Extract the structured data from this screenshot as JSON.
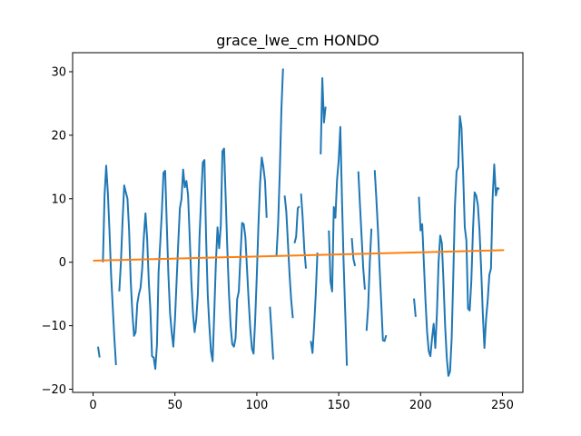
{
  "chart_data": {
    "type": "line",
    "title": "grace_lwe_cm HONDO",
    "xlabel": "",
    "ylabel": "",
    "xlim": [
      -12.5,
      262.5
    ],
    "ylim": [
      -20.5,
      33
    ],
    "xticks": [
      0,
      50,
      100,
      150,
      200,
      250
    ],
    "yticks": [
      -20,
      -10,
      0,
      10,
      20,
      30
    ],
    "xtick_labels": [
      "0",
      "50",
      "100",
      "150",
      "200",
      "250"
    ],
    "ytick_labels": [
      "−20",
      "−10",
      "0",
      "10",
      "20",
      "30"
    ],
    "grid": false,
    "legend": "none",
    "colors": {
      "series": "#1f77b4",
      "trend": "#ff7f0e",
      "frame": "#000000"
    },
    "series": [
      {
        "segments": [
          [
            [
              3,
              -13.3
            ],
            [
              4,
              -15.0
            ]
          ],
          [
            [
              6,
              0.0
            ],
            [
              7,
              10.5
            ],
            [
              8,
              15.2
            ],
            [
              9,
              11.0
            ],
            [
              10,
              5.0
            ],
            [
              11,
              -2.0
            ],
            [
              12,
              -7.0
            ],
            [
              13,
              -12.0
            ],
            [
              14,
              -16.2
            ]
          ],
          [
            [
              16,
              -4.6
            ],
            [
              17,
              0.0
            ],
            [
              18,
              6.5
            ],
            [
              19,
              12.1
            ],
            [
              20,
              11.0
            ],
            [
              21,
              10.0
            ],
            [
              22,
              5.0
            ],
            [
              23,
              -3.0
            ],
            [
              24,
              -8.0
            ],
            [
              25,
              -11.6
            ],
            [
              26,
              -11.0
            ],
            [
              27,
              -6.5
            ],
            [
              28,
              -5.0
            ],
            [
              29,
              -4.0
            ],
            [
              30,
              -1.0
            ],
            [
              31,
              4.0
            ],
            [
              32,
              7.7
            ],
            [
              33,
              3.8
            ],
            [
              34,
              -3.0
            ],
            [
              35,
              -7.5
            ],
            [
              36,
              -14.8
            ],
            [
              37,
              -15.0
            ],
            [
              38,
              -16.8
            ],
            [
              39,
              -13.0
            ],
            [
              40,
              -1.5
            ],
            [
              41,
              3.0
            ],
            [
              42,
              8.0
            ],
            [
              43,
              14.1
            ],
            [
              44,
              14.4
            ],
            [
              45,
              6.0
            ],
            [
              46,
              -2.0
            ],
            [
              47,
              -8.0
            ],
            [
              48,
              -11.0
            ],
            [
              49,
              -13.3
            ],
            [
              50,
              -9.0
            ],
            [
              51,
              -3.0
            ],
            [
              52,
              3.0
            ],
            [
              53,
              8.5
            ],
            [
              54,
              10.0
            ],
            [
              55,
              14.6
            ],
            [
              56,
              11.8
            ],
            [
              57,
              12.8
            ],
            [
              58,
              10.5
            ],
            [
              59,
              4.0
            ],
            [
              60,
              -3.0
            ],
            [
              61,
              -8.0
            ],
            [
              62,
              -11.0
            ],
            [
              63,
              -9.0
            ],
            [
              64,
              -5.0
            ],
            [
              65,
              4.0
            ],
            [
              66,
              10.0
            ],
            [
              67,
              15.7
            ],
            [
              68,
              16.1
            ],
            [
              69,
              4.0
            ],
            [
              70,
              -5.0
            ],
            [
              71,
              -10.0
            ],
            [
              72,
              -14.0
            ],
            [
              73,
              -15.6
            ],
            [
              74,
              -8.0
            ],
            [
              75,
              0.0
            ],
            [
              76,
              5.5
            ],
            [
              77,
              2.2
            ],
            [
              78,
              5.8
            ],
            [
              79,
              17.5
            ],
            [
              80,
              17.9
            ],
            [
              81,
              10.0
            ],
            [
              82,
              2.0
            ],
            [
              83,
              -5.0
            ],
            [
              84,
              -10.0
            ],
            [
              85,
              -12.9
            ],
            [
              86,
              -13.3
            ],
            [
              87,
              -12.0
            ],
            [
              88,
              -5.8
            ],
            [
              89,
              -4.6
            ],
            [
              90,
              1.0
            ],
            [
              91,
              6.2
            ],
            [
              92,
              6.0
            ],
            [
              93,
              4.0
            ],
            [
              94,
              -1.0
            ],
            [
              95,
              -6.0
            ],
            [
              96,
              -10.4
            ],
            [
              97,
              -13.6
            ],
            [
              98,
              -14.4
            ],
            [
              99,
              -9.0
            ],
            [
              100,
              -2.0
            ],
            [
              101,
              6.0
            ],
            [
              102,
              12.5
            ],
            [
              103,
              16.5
            ],
            [
              104,
              15.0
            ],
            [
              105,
              12.8
            ],
            [
              106,
              7.0
            ]
          ],
          [
            [
              108,
              -7.0
            ],
            [
              109,
              -11.0
            ],
            [
              110,
              -15.3
            ]
          ],
          [
            [
              112,
              1.0
            ],
            [
              113,
              6.0
            ],
            [
              114,
              14.0
            ],
            [
              115,
              24.0
            ],
            [
              116,
              30.5
            ]
          ],
          [
            [
              117,
              10.5
            ],
            [
              118,
              8.0
            ],
            [
              119,
              3.0
            ],
            [
              120,
              -2.0
            ],
            [
              121,
              -6.0
            ],
            [
              122,
              -8.8
            ]
          ],
          [
            [
              123,
              3.0
            ],
            [
              124,
              4.0
            ],
            [
              125,
              8.5
            ],
            [
              126,
              8.8
            ]
          ],
          [
            [
              127,
              10.8
            ],
            [
              128,
              7.0
            ],
            [
              129,
              2.0
            ],
            [
              130,
              -1.0
            ]
          ],
          [
            [
              133,
              -12.4
            ],
            [
              134,
              -14.3
            ],
            [
              135,
              -10.0
            ],
            [
              136,
              -5.0
            ],
            [
              137,
              1.5
            ]
          ],
          [
            [
              139,
              17.0
            ],
            [
              140,
              29.0
            ],
            [
              141,
              22.0
            ],
            [
              142,
              24.5
            ]
          ],
          [
            [
              144,
              5.0
            ],
            [
              145,
              -3.0
            ],
            [
              146,
              -4.6
            ],
            [
              147,
              8.7
            ],
            [
              148,
              7.0
            ],
            [
              149,
              13.0
            ],
            [
              150,
              16.0
            ],
            [
              151,
              21.3
            ],
            [
              152,
              10.0
            ],
            [
              153,
              0.0
            ],
            [
              154,
              -8.0
            ],
            [
              155,
              -16.3
            ]
          ],
          [
            [
              158,
              3.8
            ],
            [
              159,
              0.5
            ],
            [
              160,
              -0.6
            ]
          ],
          [
            [
              162,
              14.3
            ],
            [
              163,
              9.0
            ],
            [
              164,
              4.0
            ],
            [
              165,
              -1.0
            ],
            [
              166,
              -4.3
            ]
          ],
          [
            [
              167,
              -10.8
            ],
            [
              168,
              -7.0
            ],
            [
              169,
              0.0
            ],
            [
              170,
              5.3
            ]
          ],
          [
            [
              172,
              14.5
            ],
            [
              173,
              10.0
            ],
            [
              174,
              5.0
            ],
            [
              175,
              -1.0
            ],
            [
              176,
              -6.5
            ],
            [
              177,
              -12.3
            ],
            [
              178,
              -12.4
            ],
            [
              179,
              -11.5
            ]
          ],
          [
            [
              196,
              -5.7
            ],
            [
              197,
              -8.6
            ]
          ],
          [
            [
              199,
              10.3
            ],
            [
              200,
              5.0
            ],
            [
              201,
              6.0
            ],
            [
              202,
              0.0
            ],
            [
              203,
              -6.0
            ],
            [
              204,
              -11.0
            ],
            [
              205,
              -14.0
            ],
            [
              206,
              -14.8
            ],
            [
              207,
              -12.0
            ],
            [
              208,
              -9.7
            ],
            [
              209,
              -13.5
            ],
            [
              210,
              -8.0
            ],
            [
              211,
              0.0
            ],
            [
              212,
              4.2
            ],
            [
              213,
              3.0
            ],
            [
              214,
              -3.0
            ],
            [
              215,
              -10.0
            ],
            [
              216,
              -15.0
            ],
            [
              217,
              -17.9
            ],
            [
              218,
              -17.2
            ],
            [
              219,
              -12.0
            ],
            [
              220,
              -2.0
            ],
            [
              221,
              9.0
            ],
            [
              222,
              14.3
            ],
            [
              223,
              15.0
            ],
            [
              224,
              23.0
            ],
            [
              225,
              21.2
            ],
            [
              226,
              14.0
            ],
            [
              227,
              5.5
            ],
            [
              228,
              3.4
            ],
            [
              229,
              -7.3
            ],
            [
              230,
              -7.6
            ],
            [
              231,
              -3.0
            ],
            [
              232,
              5.0
            ],
            [
              233,
              11.0
            ],
            [
              234,
              10.5
            ],
            [
              235,
              9.0
            ],
            [
              236,
              5.0
            ],
            [
              237,
              -1.0
            ],
            [
              238,
              -8.0
            ],
            [
              239,
              -13.5
            ],
            [
              240,
              -9.0
            ],
            [
              241,
              -6.0
            ],
            [
              242,
              -2.0
            ],
            [
              243,
              -1.0
            ],
            [
              244,
              10.0
            ],
            [
              245,
              15.4
            ],
            [
              246,
              10.5
            ],
            [
              247,
              11.7
            ],
            [
              248,
              11.5
            ]
          ]
        ]
      },
      {
        "points": [
          [
            0,
            0.25
          ],
          [
            251,
            1.9
          ]
        ]
      }
    ]
  }
}
